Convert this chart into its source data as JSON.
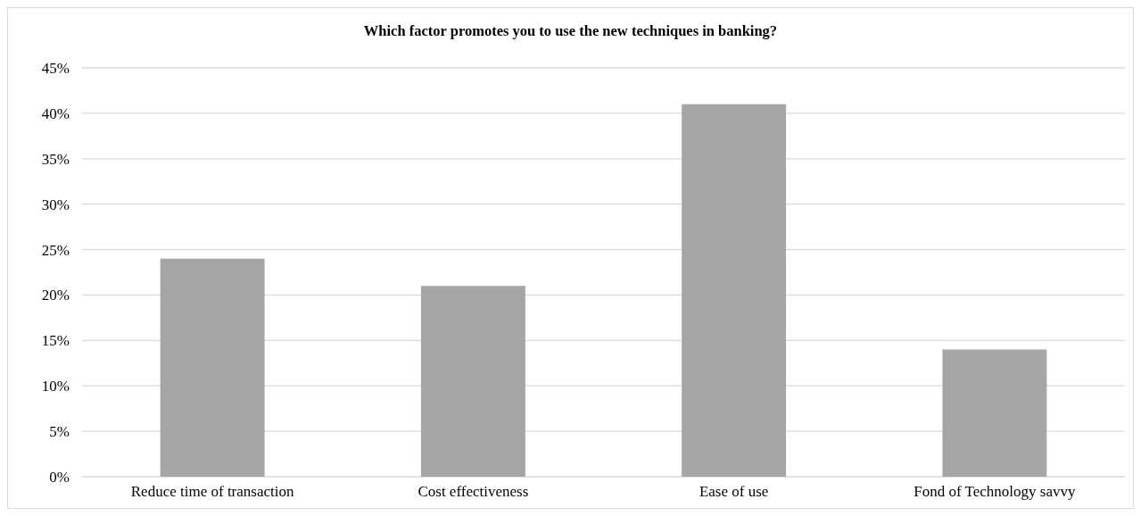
{
  "chart_data": {
    "type": "bar",
    "title": "Which factor promotes you to use the new techniques in banking?",
    "categories": [
      "Reduce time of transaction",
      "Cost effectiveness",
      "Ease of use",
      "Fond of Technology savvy"
    ],
    "values": [
      24,
      21,
      41,
      14
    ],
    "color": "#a5a5a5",
    "ylim": [
      0,
      45
    ],
    "yticks": [
      {
        "value": 0,
        "label": "0%"
      },
      {
        "value": 5,
        "label": "5%"
      },
      {
        "value": 10,
        "label": "10%"
      },
      {
        "value": 15,
        "label": "15%"
      },
      {
        "value": 20,
        "label": "20%"
      },
      {
        "value": 25,
        "label": "25%"
      },
      {
        "value": 30,
        "label": "30%"
      },
      {
        "value": 35,
        "label": "35%"
      },
      {
        "value": 40,
        "label": "40%"
      },
      {
        "value": 45,
        "label": "45%"
      }
    ],
    "grid": "y"
  }
}
